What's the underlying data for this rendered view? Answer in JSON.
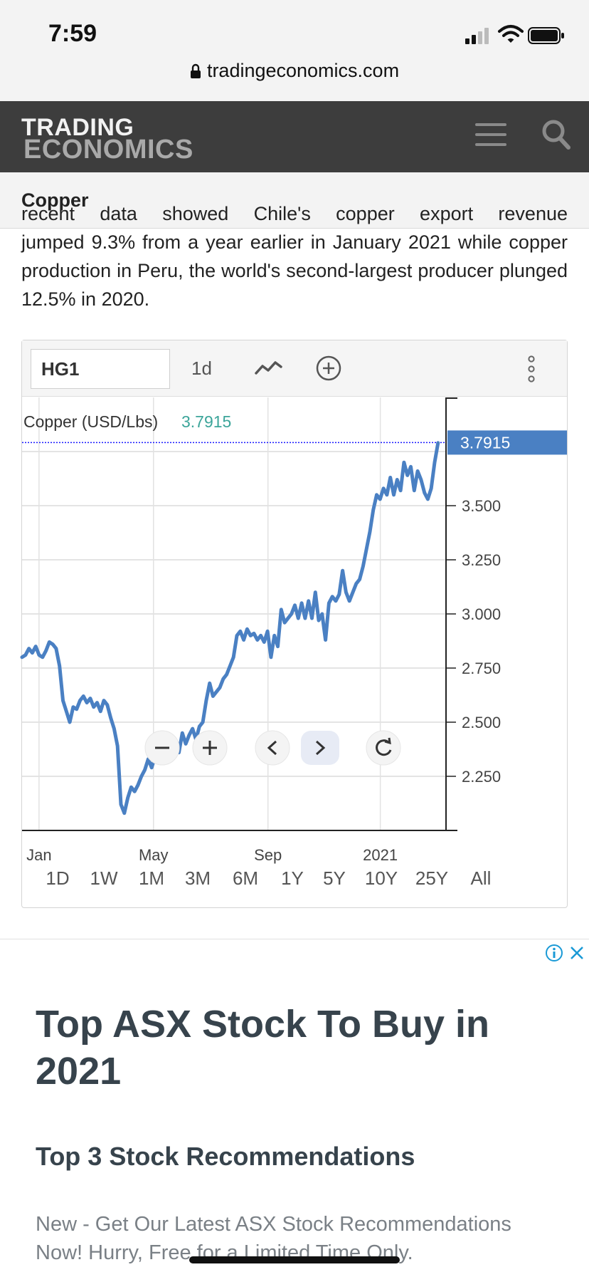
{
  "status_bar": {
    "time": "7:59"
  },
  "browser": {
    "url": "tradingeconomics.com"
  },
  "header": {
    "logo_line1": "TRADING",
    "logo_line2": "ECONOMICS"
  },
  "breadcrumb": {
    "title": "Copper"
  },
  "article": {
    "cut_line": "recent data showed Chile's copper export revenue",
    "text": "jumped 9.3% from a year earlier in January 2021 while copper production in Peru, the world's second-largest producer plunged 12.5% in 2020."
  },
  "chart_toolbar": {
    "symbol": "HG1",
    "interval": "1d"
  },
  "chart_data": {
    "type": "line",
    "series_label": "Copper (USD/Lbs)",
    "last_value": "3.7915",
    "x_tick_labels": [
      "Jan",
      "May",
      "Sep",
      "2021"
    ],
    "y_tick_labels": [
      "3.500",
      "3.250",
      "3.000",
      "2.750",
      "2.500",
      "2.250"
    ],
    "ylim": [
      2.0,
      4.0
    ],
    "grid": true,
    "series": [
      {
        "values": [
          2.8,
          2.81,
          2.84,
          2.82,
          2.85,
          2.81,
          2.8,
          2.83,
          2.87,
          2.86,
          2.84,
          2.76,
          2.6,
          2.55,
          2.5,
          2.57,
          2.56,
          2.6,
          2.62,
          2.59,
          2.61,
          2.57,
          2.59,
          2.55,
          2.6,
          2.58,
          2.52,
          2.47,
          2.39,
          2.12,
          2.08,
          2.15,
          2.2,
          2.18,
          2.21,
          2.25,
          2.28,
          2.33,
          2.29,
          2.34,
          2.32,
          2.37,
          2.33,
          2.4,
          2.35,
          2.38,
          2.36,
          2.45,
          2.4,
          2.44,
          2.47,
          2.42,
          2.48,
          2.5,
          2.6,
          2.68,
          2.62,
          2.64,
          2.66,
          2.7,
          2.72,
          2.76,
          2.8,
          2.9,
          2.92,
          2.88,
          2.93,
          2.9,
          2.91,
          2.88,
          2.9,
          2.87,
          2.92,
          2.8,
          2.9,
          2.85,
          3.02,
          2.96,
          2.98,
          3.0,
          3.04,
          2.98,
          3.05,
          2.98,
          3.06,
          2.98,
          3.1,
          2.97,
          3.0,
          2.88,
          3.05,
          3.08,
          3.06,
          3.09,
          3.2,
          3.1,
          3.06,
          3.1,
          3.14,
          3.16,
          3.22,
          3.3,
          3.38,
          3.48,
          3.55,
          3.53,
          3.58,
          3.55,
          3.63,
          3.55,
          3.62,
          3.57,
          3.7,
          3.64,
          3.68,
          3.57,
          3.66,
          3.62,
          3.56,
          3.53,
          3.58,
          3.7,
          3.79
        ]
      }
    ]
  },
  "range_buttons": [
    "1D",
    "1W",
    "1M",
    "3M",
    "6M",
    "1Y",
    "5Y",
    "10Y",
    "25Y",
    "All"
  ],
  "ad": {
    "title": "Top ASX Stock To Buy in 2021",
    "subtitle": "Top 3 Stock Recommendations",
    "body": "New - Get Our Latest ASX Stock Recommendations Now! Hurry, Free for a Limited Time Only."
  },
  "colors": {
    "line": "#4a80c3",
    "navbar": "#3d3d3d",
    "price_label_bg": "#4a80c3",
    "value_text": "#3ca59a"
  }
}
